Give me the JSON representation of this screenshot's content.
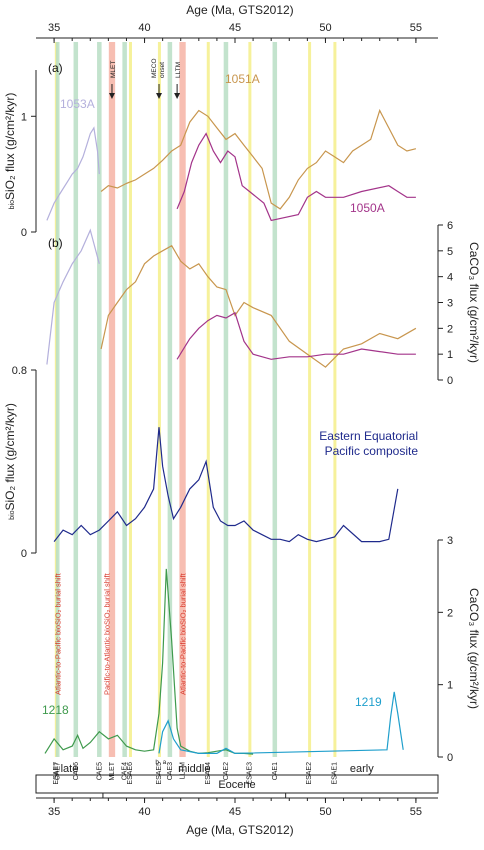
{
  "chart_data": {
    "type": "line",
    "x_axis": {
      "label": "Age (Ma, GTS2012)",
      "ticks": [
        "35",
        "40",
        "45",
        "50",
        "55"
      ],
      "range": [
        34,
        56
      ]
    },
    "panels": [
      {
        "label": "(a)",
        "ylabel": "bioSiO₂ flux (g/cm²/kyr)",
        "ylabel_sub": "bio",
        "ylabel_main": "SiO₂ flux (g/cm²/kyr)",
        "yticks": [
          "0",
          "1"
        ],
        "ylim": [
          0,
          1.4
        ],
        "series": [
          {
            "name": "1053A",
            "color": "#b4b0dc",
            "x": [
              34.6,
              35.0,
              35.4,
              35.8,
              36.0,
              36.3,
              36.6,
              36.8,
              37.0,
              37.2,
              37.4,
              37.5
            ],
            "values": [
              0.1,
              0.25,
              0.35,
              0.45,
              0.5,
              0.55,
              0.65,
              0.75,
              0.85,
              0.9,
              0.7,
              0.5
            ]
          },
          {
            "name": "1051A",
            "color": "#c8964e",
            "x": [
              37.6,
              38.0,
              38.5,
              39.0,
              39.5,
              40.0,
              40.5,
              41.0,
              41.5,
              42.0,
              42.5,
              43.0,
              43.5,
              44.0,
              44.5,
              45.0,
              45.5,
              46.0,
              46.5,
              47.0,
              47.5,
              48.0,
              48.5,
              49.0,
              49.5,
              50.0,
              50.5,
              51.0,
              51.5,
              52.0,
              52.5,
              53.0,
              53.5,
              54.0,
              54.5,
              55.0
            ],
            "values": [
              0.35,
              0.4,
              0.38,
              0.42,
              0.45,
              0.5,
              0.55,
              0.62,
              0.7,
              0.75,
              0.95,
              1.05,
              1.0,
              0.9,
              0.8,
              0.85,
              0.75,
              0.65,
              0.55,
              0.25,
              0.2,
              0.3,
              0.45,
              0.55,
              0.6,
              0.7,
              0.65,
              0.6,
              0.7,
              0.75,
              0.8,
              1.05,
              0.9,
              0.75,
              0.7,
              0.72
            ]
          },
          {
            "name": "1050A",
            "color": "#a3348a",
            "x": [
              41.8,
              42.2,
              42.6,
              43.0,
              43.4,
              43.8,
              44.2,
              44.6,
              45.0,
              45.4,
              45.8,
              46.2,
              46.6,
              47.0,
              48.5,
              49.0,
              49.5,
              50.0,
              51.0,
              52.0,
              53.5,
              54.0,
              54.5,
              55.0
            ],
            "values": [
              0.2,
              0.35,
              0.6,
              0.75,
              0.85,
              0.7,
              0.6,
              0.7,
              0.65,
              0.4,
              0.35,
              0.3,
              0.25,
              0.1,
              0.15,
              0.3,
              0.35,
              0.3,
              0.3,
              0.35,
              0.4,
              0.35,
              0.3,
              0.3
            ]
          }
        ]
      },
      {
        "label": "(b)",
        "ylabel": "CaCO₃ flux (g/cm²/kyr)",
        "yticks": [
          "0",
          "1",
          "2",
          "3",
          "4",
          "5",
          "6"
        ],
        "ylim": [
          0,
          6
        ],
        "series": [
          {
            "name": "1053A",
            "color": "#b4b0dc",
            "x": [
              34.6,
              35.0,
              35.5,
              36.0,
              36.5,
              37.0,
              37.5
            ],
            "values": [
              0.6,
              3.0,
              3.8,
              4.5,
              5.0,
              5.8,
              4.5
            ]
          },
          {
            "name": "1051A",
            "color": "#c8964e",
            "x": [
              37.6,
              38.0,
              38.5,
              39.0,
              39.5,
              40.0,
              40.5,
              41.0,
              41.5,
              42.0,
              42.5,
              43.0,
              43.5,
              44.0,
              44.5,
              45.0,
              45.5,
              46.0,
              47.0,
              48.0,
              49.0,
              50.0,
              51.0,
              52.0,
              53.0,
              54.0,
              55.0
            ],
            "values": [
              1.2,
              2.5,
              3.0,
              3.5,
              3.8,
              4.5,
              4.8,
              5.0,
              5.2,
              4.6,
              4.3,
              4.5,
              4.0,
              3.6,
              3.5,
              2.5,
              3.0,
              2.8,
              2.5,
              1.5,
              1.0,
              0.5,
              1.2,
              1.4,
              1.8,
              1.6,
              2.0
            ]
          },
          {
            "name": "1050A",
            "color": "#a3348a",
            "x": [
              41.8,
              42.5,
              43.0,
              43.5,
              44.0,
              44.5,
              45.0,
              45.5,
              46.0,
              47.0,
              48.0,
              49.0,
              50.0,
              51.0,
              52.0,
              53.0,
              54.0,
              55.0
            ],
            "values": [
              0.8,
              1.6,
              2.0,
              2.3,
              2.5,
              2.4,
              2.6,
              1.5,
              1.0,
              0.8,
              0.9,
              0.9,
              1.0,
              1.0,
              1.2,
              1.1,
              1.0,
              1.0
            ]
          }
        ]
      },
      {
        "label": "",
        "ylabel": "bioSiO₂ flux (g/cm²/kyr)",
        "ylabel_sub": "bio",
        "ylabel_main": "SiO₂ flux (g/cm²/kyr)",
        "yticks": [
          "0",
          "0.8"
        ],
        "ylim": [
          0,
          0.8
        ],
        "series": [
          {
            "name": "Eastern Equatorial Pacific composite",
            "color": "#1f2a8c",
            "x": [
              35.0,
              35.5,
              36.0,
              36.5,
              37.0,
              37.5,
              38.0,
              38.5,
              39.0,
              39.5,
              40.0,
              40.5,
              40.8,
              41.0,
              41.3,
              41.6,
              42.0,
              42.5,
              43.0,
              43.4,
              43.8,
              44.2,
              44.6,
              45.0,
              45.5,
              46.0,
              46.5,
              47.0,
              47.5,
              48.0,
              48.5,
              49.0,
              49.5,
              50.0,
              50.5,
              51.0,
              52.0,
              53.0,
              53.5,
              54.0
            ],
            "values": [
              0.05,
              0.1,
              0.08,
              0.12,
              0.08,
              0.1,
              0.14,
              0.18,
              0.12,
              0.15,
              0.2,
              0.28,
              0.55,
              0.38,
              0.25,
              0.15,
              0.2,
              0.28,
              0.32,
              0.4,
              0.2,
              0.14,
              0.12,
              0.12,
              0.14,
              0.1,
              0.08,
              0.06,
              0.06,
              0.05,
              0.08,
              0.06,
              0.05,
              0.06,
              0.07,
              0.12,
              0.05,
              0.05,
              0.06,
              0.28
            ]
          }
        ]
      },
      {
        "label": "",
        "ylabel": "CaCO₃ flux (g/cm²/kyr)",
        "yticks": [
          "0",
          "1",
          "2",
          "3"
        ],
        "ylim": [
          0,
          3
        ],
        "series": [
          {
            "name": "1218",
            "color": "#3f9a4d",
            "x": [
              34.5,
              35.0,
              35.5,
              36.0,
              36.3,
              36.6,
              37.0,
              37.5,
              38.0,
              38.5,
              39.0,
              39.5,
              40.0,
              40.5,
              40.8,
              41.0,
              41.2,
              41.5,
              41.8,
              42.0,
              42.5,
              43.0,
              43.5,
              44.0,
              44.5,
              45.0,
              45.5,
              46.0
            ],
            "values": [
              0.05,
              0.25,
              0.1,
              0.15,
              0.3,
              0.12,
              0.2,
              0.35,
              0.25,
              0.3,
              0.15,
              0.1,
              0.08,
              0.1,
              0.6,
              1.3,
              2.6,
              1.6,
              0.4,
              0.15,
              0.08,
              0.05,
              0.06,
              0.08,
              0.1,
              0.05,
              0.05,
              0.04
            ]
          },
          {
            "name": "1219",
            "color": "#1f9fcc",
            "x": [
              40.8,
              41.0,
              41.3,
              41.6,
              42.0,
              43.0,
              44.0,
              44.5,
              45.0,
              53.4,
              53.6,
              53.8,
              54.0,
              54.3
            ],
            "values": [
              0.05,
              0.35,
              0.5,
              0.25,
              0.1,
              0.05,
              0.05,
              0.12,
              0.05,
              0.1,
              0.55,
              0.9,
              0.6,
              0.1
            ]
          }
        ]
      }
    ],
    "event_bands": [
      {
        "label": "ESAE7",
        "color": "#f5ee8a"
      },
      {
        "label": "CAE7",
        "color": "#b9dec4"
      },
      {
        "label": "CAE6",
        "color": "#b9dec4"
      },
      {
        "label": "CAE5",
        "color": "#b9dec4"
      },
      {
        "label": "MLET",
        "color": "#f6b3a4"
      },
      {
        "label": "CAE4",
        "color": "#b9dec4"
      },
      {
        "label": "ESAE6",
        "color": "#f5ee8a"
      },
      {
        "label": "ESAE5",
        "color": "#f5ee8a"
      },
      {
        "label": "CAE3",
        "color": "#b9dec4"
      },
      {
        "label": "LLTM",
        "color": "#f6b3a4"
      },
      {
        "label": "ESAE4",
        "color": "#f5ee8a"
      },
      {
        "label": "CAE2",
        "color": "#b9dec4"
      },
      {
        "label": "ESAE3",
        "color": "#f5ee8a"
      },
      {
        "label": "CAE1",
        "color": "#b9dec4"
      },
      {
        "label": "ESAE2",
        "color": "#f5ee8a"
      },
      {
        "label": "ESAE1",
        "color": "#f5ee8a"
      }
    ],
    "annotations": {
      "mlet": "MLET",
      "meco": "MECO",
      "meco_sub": "onset",
      "lltm": "LLTM",
      "a": "a",
      "b": "b"
    },
    "shifts": [
      {
        "label": "Atlantic-to-Pacific bioSiO₂ burial shift"
      },
      {
        "label": "Pacific-to-Atlantic bioSiO₂ burial shift"
      },
      {
        "label": "Atlantic-to-Pacific bioSiO₂ burial shift"
      }
    ],
    "stratigraphy": {
      "epoch": "Eocene",
      "subdivisions": [
        "late",
        "middle",
        "early"
      ]
    }
  }
}
